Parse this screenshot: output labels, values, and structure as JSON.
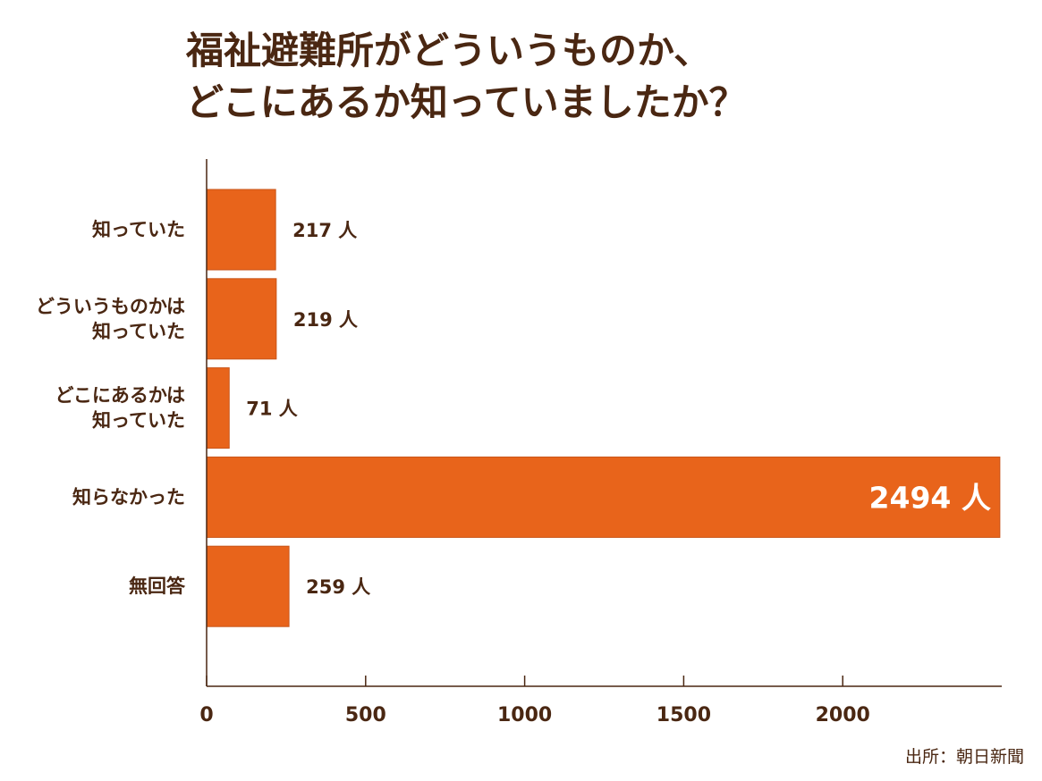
{
  "chart_data": {
    "type": "bar",
    "orientation": "horizontal",
    "title": [
      "福祉避難所がどういうものか、",
      "どこにあるか知っていましたか？"
    ],
    "categories": [
      [
        "知っていた"
      ],
      [
        "どういうものかは",
        "知っていた"
      ],
      [
        "どこにあるかは",
        "知っていた"
      ],
      [
        "知らなかった"
      ],
      [
        "無回答"
      ]
    ],
    "values": [
      217,
      219,
      71,
      2494,
      259
    ],
    "value_labels": [
      "217 人",
      "219 人",
      "71 人",
      "2494 人",
      "259 人"
    ],
    "xticks": [
      "0",
      "500",
      "1000",
      "1500",
      "2000"
    ],
    "xlim": [
      0,
      2500
    ],
    "grid": false,
    "legend": "none",
    "bar_color": "#e8641b",
    "text_color": "#4a2712"
  },
  "source": "出所：朝日新聞"
}
